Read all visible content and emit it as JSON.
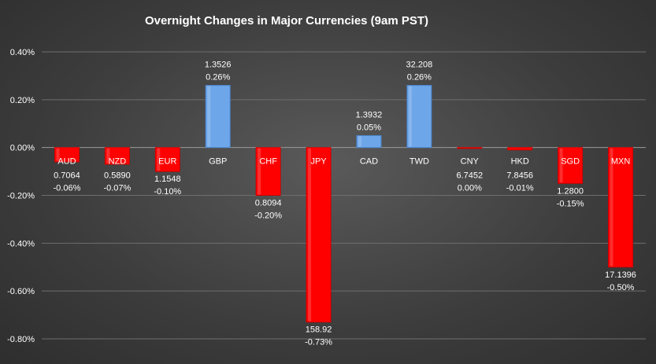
{
  "chart_data": {
    "type": "bar",
    "title": "Overnight Changes in Major Currencies (9am PST)",
    "xlabel": "",
    "ylabel": "",
    "ylim": [
      -0.8,
      0.4
    ],
    "yticks": [
      "0.40%",
      "0.20%",
      "0.00%",
      "-0.20%",
      "-0.40%",
      "-0.60%",
      "-0.80%"
    ],
    "ytick_values": [
      0.4,
      0.2,
      0.0,
      -0.2,
      -0.4,
      -0.6,
      -0.8
    ],
    "grid": true,
    "legend": "none",
    "categories": [
      "AUD",
      "NZD",
      "EUR",
      "GBP",
      "CHF",
      "JPY",
      "CAD",
      "TWD",
      "CNY",
      "HKD",
      "SGD",
      "MXN"
    ],
    "values": [
      -0.06,
      -0.07,
      -0.1,
      0.26,
      -0.2,
      -0.73,
      0.05,
      0.26,
      -0.004,
      -0.01,
      -0.15,
      -0.5
    ],
    "rates": [
      "0.7064",
      "0.5890",
      "1.1548",
      "1.3526",
      "0.8094",
      "158.92",
      "1.3932",
      "32.208",
      "6.7452",
      "7.8456",
      "1.2800",
      "17.1396"
    ],
    "pct_labels": [
      "-0.06%",
      "-0.07%",
      "-0.10%",
      "0.26%",
      "-0.20%",
      "-0.73%",
      "0.05%",
      "0.26%",
      "0.00%",
      "-0.01%",
      "-0.15%",
      "-0.50%"
    ],
    "colors": {
      "positive": "#6ea6ea",
      "positive_edge": "#4a84cc",
      "negative": "#ff0000",
      "negative_edge": "#cc0000",
      "category_on_red": "#ffffff",
      "category_on_dark": "#ffffff"
    }
  }
}
